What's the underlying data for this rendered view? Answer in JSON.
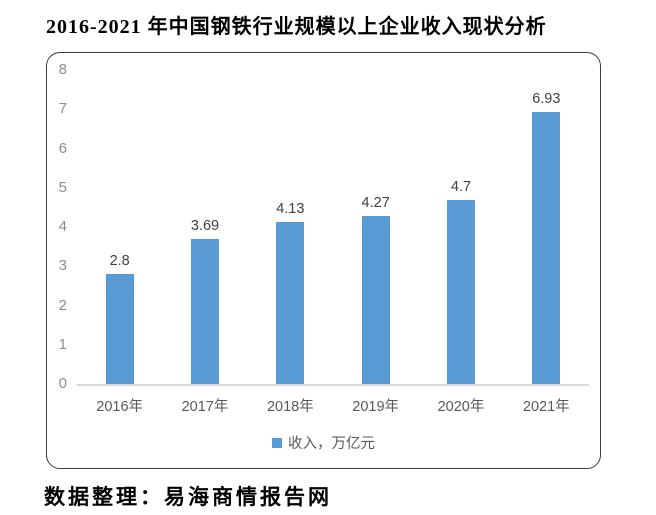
{
  "title": "2016-2021 年中国钢铁行业规模以上企业收入现状分析",
  "source_note": "数据整理：易海商情报告网",
  "colors": {
    "bar": "#5b9bd5",
    "axis_line": "#d9d9d9",
    "y_tick_text": "#8c8c8c",
    "x_tick_text": "#595959",
    "data_label_text": "#404040",
    "legend_text": "#595959",
    "chart_border": "#3c3c3c",
    "background": "#ffffff"
  },
  "chart_data": {
    "type": "bar",
    "title": "2016-2021 年中国钢铁行业规模以上企业收入现状分析",
    "categories": [
      "2016年",
      "2017年",
      "2018年",
      "2019年",
      "2020年",
      "2021年"
    ],
    "series": [
      {
        "name": "收入，万亿元",
        "values": [
          2.8,
          3.69,
          4.13,
          4.27,
          4.7,
          6.93
        ]
      }
    ],
    "data_labels": [
      "2.8",
      "3.69",
      "4.13",
      "4.27",
      "4.7",
      "6.93"
    ],
    "xlabel": "",
    "ylabel": "",
    "ylim": [
      0,
      8
    ],
    "yticks": [
      0,
      1,
      2,
      3,
      4,
      5,
      6,
      7,
      8
    ],
    "grid": false,
    "legend_position": "bottom",
    "legend_marker": "square"
  }
}
